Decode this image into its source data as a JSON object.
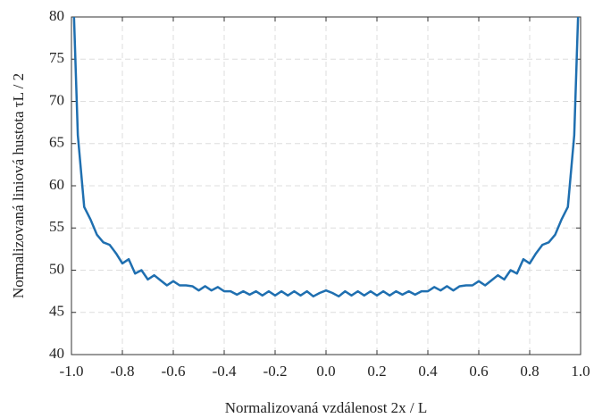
{
  "chart_data": {
    "type": "line",
    "xlabel": "Normalizovaná vzdálenost 2x / L",
    "ylabel": "Normalizovaná liniová hustota τL / 2",
    "x": [
      -0.99,
      -0.975,
      -0.95,
      -0.925,
      -0.9,
      -0.875,
      -0.85,
      -0.825,
      -0.8,
      -0.775,
      -0.75,
      -0.725,
      -0.7,
      -0.675,
      -0.65,
      -0.625,
      -0.6,
      -0.575,
      -0.55,
      -0.525,
      -0.5,
      -0.475,
      -0.45,
      -0.425,
      -0.4,
      -0.375,
      -0.35,
      -0.325,
      -0.3,
      -0.275,
      -0.25,
      -0.225,
      -0.2,
      -0.175,
      -0.15,
      -0.125,
      -0.1,
      -0.075,
      -0.05,
      -0.025,
      0,
      0.025,
      0.05,
      0.075,
      0.1,
      0.125,
      0.15,
      0.175,
      0.2,
      0.225,
      0.25,
      0.275,
      0.3,
      0.325,
      0.35,
      0.375,
      0.4,
      0.425,
      0.45,
      0.475,
      0.5,
      0.525,
      0.55,
      0.575,
      0.6,
      0.625,
      0.65,
      0.675,
      0.7,
      0.725,
      0.75,
      0.775,
      0.8,
      0.825,
      0.85,
      0.875,
      0.9,
      0.925,
      0.95,
      0.975,
      0.99
    ],
    "series": [
      {
        "color": "#1f6fb0",
        "values": [
          80,
          66,
          57.5,
          56,
          54.2,
          53.3,
          53,
          52,
          50.8,
          51.3,
          49.6,
          50,
          48.9,
          49.4,
          48.8,
          48.2,
          48.7,
          48.2,
          48.2,
          48.1,
          47.6,
          48.1,
          47.6,
          48,
          47.5,
          47.5,
          47.1,
          47.5,
          47.1,
          47.5,
          47.0,
          47.5,
          47.0,
          47.5,
          47.0,
          47.5,
          47.0,
          47.5,
          46.9,
          47.3,
          47.6,
          47.3,
          46.9,
          47.5,
          47.0,
          47.5,
          47.0,
          47.5,
          47.0,
          47.5,
          47.0,
          47.5,
          47.1,
          47.5,
          47.1,
          47.5,
          47.5,
          48,
          47.6,
          48.1,
          47.6,
          48.1,
          48.2,
          48.2,
          48.7,
          48.2,
          48.8,
          49.4,
          48.9,
          50,
          49.6,
          51.3,
          50.8,
          52,
          53,
          53.3,
          54.2,
          56,
          57.5,
          66,
          80
        ]
      }
    ],
    "xlim": [
      -1,
      1
    ],
    "xticks": [
      {
        "value": -1,
        "label": "-1.0"
      },
      -0.8,
      -0.6,
      -0.4,
      -0.2,
      {
        "value": 0,
        "label": "0.0"
      },
      0.2,
      0.4,
      0.6,
      0.8,
      {
        "value": 1,
        "label": "1.0"
      }
    ],
    "ylim": [
      40,
      80
    ],
    "yticks": [
      40,
      45,
      50,
      55,
      60,
      65,
      70,
      75,
      80
    ],
    "grid": true
  }
}
